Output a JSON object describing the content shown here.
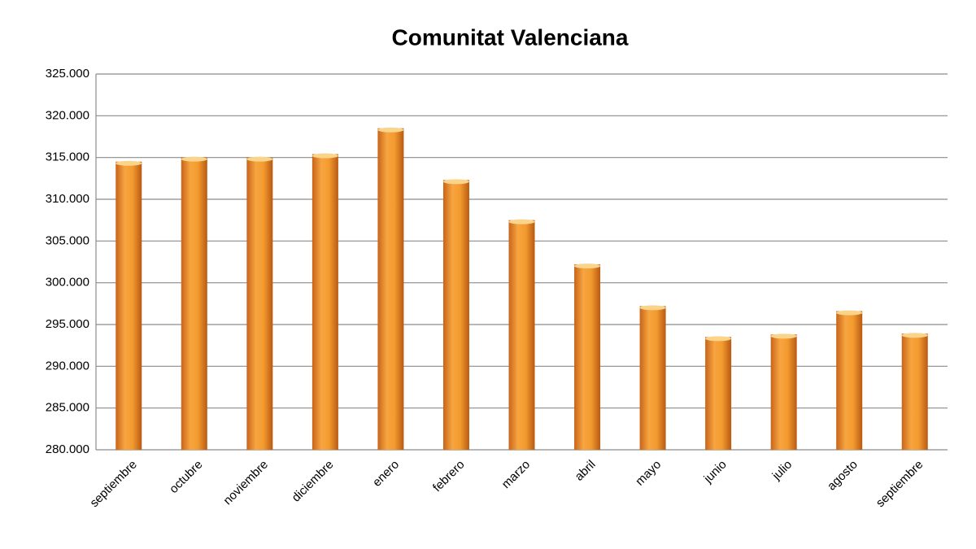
{
  "chart_data": {
    "type": "bar",
    "title": "Comunitat Valenciana",
    "categories": [
      "septiembre",
      "octubre",
      "noviembre",
      "diciembre",
      "enero",
      "febrero",
      "marzo",
      "abril",
      "mayo",
      "junio",
      "julio",
      "agosto",
      "septiembre"
    ],
    "values": [
      314500,
      315000,
      315000,
      315400,
      318500,
      312300,
      307500,
      302200,
      297200,
      293500,
      293800,
      296600,
      293900
    ],
    "color": "#f39a2e",
    "ylim": [
      280000,
      325000
    ],
    "yticks": [
      {
        "value": 280000,
        "label": "280.000"
      },
      {
        "value": 285000,
        "label": "285.000"
      },
      {
        "value": 290000,
        "label": "290.000"
      },
      {
        "value": 295000,
        "label": "295.000"
      },
      {
        "value": 300000,
        "label": "300.000"
      },
      {
        "value": 305000,
        "label": "305.000"
      },
      {
        "value": 310000,
        "label": "310.000"
      },
      {
        "value": 315000,
        "label": "315.000"
      },
      {
        "value": 320000,
        "label": "320.000"
      },
      {
        "value": 325000,
        "label": "325.000"
      }
    ],
    "grid": true
  }
}
